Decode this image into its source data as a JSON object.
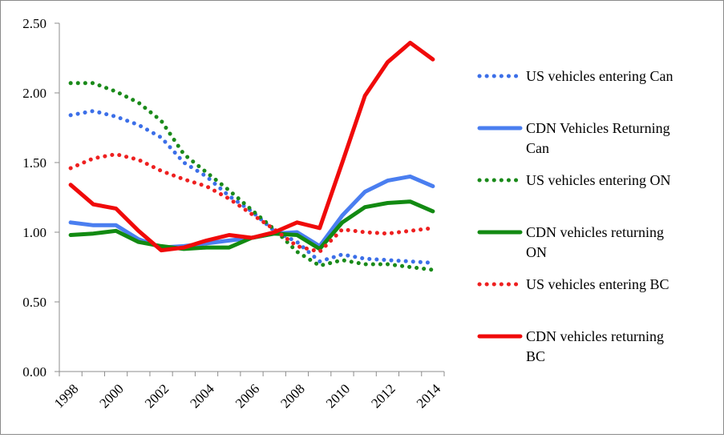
{
  "chart_data": {
    "type": "line",
    "title": "",
    "xlabel": "",
    "ylabel": "",
    "ylim": [
      0,
      2.5
    ],
    "yticks": [
      "0.00",
      "0.50",
      "1.00",
      "1.50",
      "2.00",
      "2.50"
    ],
    "xlim": [
      1998,
      2015
    ],
    "xticks": [
      "1998",
      "2000",
      "2002",
      "2004",
      "2006",
      "2008",
      "2010",
      "2012",
      "2014"
    ],
    "grid": false,
    "legend_position": "right",
    "x": [
      1998,
      1999,
      2000,
      2001,
      2002,
      2003,
      2004,
      2005,
      2006,
      2007,
      2008,
      2009,
      2010,
      2011,
      2012,
      2013,
      2014
    ],
    "series": [
      {
        "name": "US vehicles entering Can",
        "style": "dotted",
        "color": "#3c6fe8",
        "values": [
          1.84,
          1.87,
          1.83,
          1.77,
          1.68,
          1.5,
          1.4,
          1.26,
          1.15,
          1.01,
          0.93,
          0.79,
          0.84,
          0.81,
          0.8,
          0.79,
          0.78
        ]
      },
      {
        "name": "CDN Vehicles Returning Can",
        "style": "solid",
        "color": "#4a7ef0",
        "values": [
          1.07,
          1.05,
          1.05,
          0.95,
          0.89,
          0.9,
          0.92,
          0.94,
          0.96,
          0.99,
          1.0,
          0.9,
          1.12,
          1.29,
          1.37,
          1.4,
          1.33
        ]
      },
      {
        "name": "US vehicles entering ON",
        "style": "dotted",
        "color": "#1a8a1a",
        "values": [
          2.07,
          2.07,
          2.01,
          1.93,
          1.8,
          1.56,
          1.43,
          1.3,
          1.16,
          1.02,
          0.86,
          0.76,
          0.8,
          0.77,
          0.77,
          0.75,
          0.73
        ]
      },
      {
        "name": "CDN vehicles returning ON",
        "style": "solid",
        "color": "#128a12",
        "values": [
          0.98,
          0.99,
          1.01,
          0.93,
          0.9,
          0.88,
          0.89,
          0.89,
          0.96,
          0.99,
          0.98,
          0.88,
          1.07,
          1.18,
          1.21,
          1.22,
          1.15
        ]
      },
      {
        "name": "US vehicles entering BC",
        "style": "dotted",
        "color": "#ee2020",
        "values": [
          1.46,
          1.53,
          1.56,
          1.52,
          1.44,
          1.38,
          1.33,
          1.24,
          1.13,
          1.02,
          0.9,
          0.86,
          1.02,
          1.0,
          0.99,
          1.01,
          1.03
        ]
      },
      {
        "name": "CDN vehicles returning BC",
        "style": "solid",
        "color": "#f00a0a",
        "values": [
          1.34,
          1.2,
          1.17,
          1.01,
          0.87,
          0.89,
          0.94,
          0.98,
          0.96,
          1.0,
          1.07,
          1.03,
          1.5,
          1.98,
          2.22,
          2.36,
          2.24
        ]
      }
    ]
  }
}
